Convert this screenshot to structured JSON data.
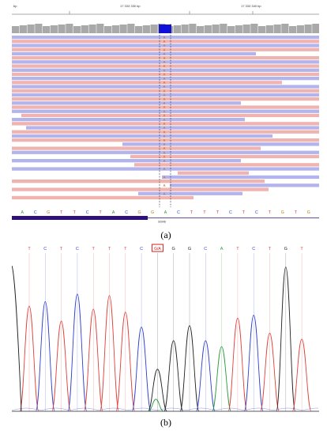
{
  "panel_a": {
    "ruler_labels": [
      "bp",
      "17 333 330 bp",
      "17 333 340 bp"
    ],
    "reference_bases": [
      "A",
      "C",
      "G",
      "T",
      "T",
      "C",
      "T",
      "A",
      "C",
      "G",
      "G",
      "A",
      "C",
      "T",
      "T",
      "T",
      "C",
      "T",
      "C",
      "T",
      "G",
      "T",
      "G"
    ],
    "variant_base": "A",
    "gene_label": "SDHB",
    "colors": {
      "coverage": "#a9a9a9",
      "variant_highlight": "#1010d8",
      "forward_read": "#f0b4b0",
      "reverse_read": "#b4b4ec",
      "variant_text": "#d07020",
      "guide_line": "#333333",
      "gene_bar": "#30107a"
    }
  },
  "panel_b": {
    "base_calls": [
      "T",
      "C",
      "T",
      "C",
      "T",
      "T",
      "T",
      "C",
      "G/A",
      "G",
      "G",
      "C",
      "A",
      "T",
      "C",
      "T",
      "G",
      "T"
    ],
    "highlighted_base": "G/A",
    "colors": {
      "A": "#2a9a3a",
      "C": "#2f3fcf",
      "G": "#222222",
      "T": "#e0403a",
      "highlight_box": "#d02020"
    }
  },
  "captions": {
    "a": "(a)",
    "b": "(b)"
  }
}
